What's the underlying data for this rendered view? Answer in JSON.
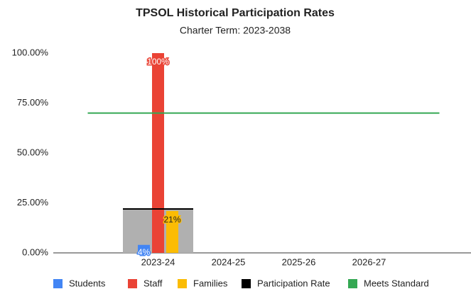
{
  "chart_data": {
    "type": "bar",
    "title": "TPSOL Historical Participation Rates",
    "subtitle": "Charter Term:  2023-2038",
    "categories": [
      "2023-24",
      "2024-25",
      "2025-26",
      "2026-27"
    ],
    "series": [
      {
        "name": "Students",
        "color": "#4285f4",
        "values": [
          4,
          null,
          null,
          null
        ],
        "value_labels": [
          "4%",
          null,
          null,
          null
        ]
      },
      {
        "name": "Staff",
        "color": "#ea4335",
        "values": [
          100,
          null,
          null,
          null
        ],
        "value_labels": [
          "100%",
          null,
          null,
          null
        ]
      },
      {
        "name": "Families",
        "color": "#fbbc04",
        "values": [
          21,
          null,
          null,
          null
        ],
        "value_labels": [
          "21%",
          null,
          null,
          null
        ]
      },
      {
        "name": "Participation Rate",
        "color": "#000000",
        "type": "stepped-area",
        "values": [
          22,
          null,
          null,
          null
        ]
      },
      {
        "name": "Meets Standard",
        "color": "#34a853",
        "type": "line",
        "values": [
          70,
          70,
          70,
          70
        ]
      }
    ],
    "ylim": [
      0,
      100
    ],
    "yticks": [
      {
        "value": 0,
        "label": "0.00%"
      },
      {
        "value": 25,
        "label": "25.00%"
      },
      {
        "value": 50,
        "label": "50.00%"
      },
      {
        "value": 75,
        "label": "75.00%"
      },
      {
        "value": 100,
        "label": "100.00%"
      }
    ],
    "grid": false,
    "legend": "bottom"
  }
}
